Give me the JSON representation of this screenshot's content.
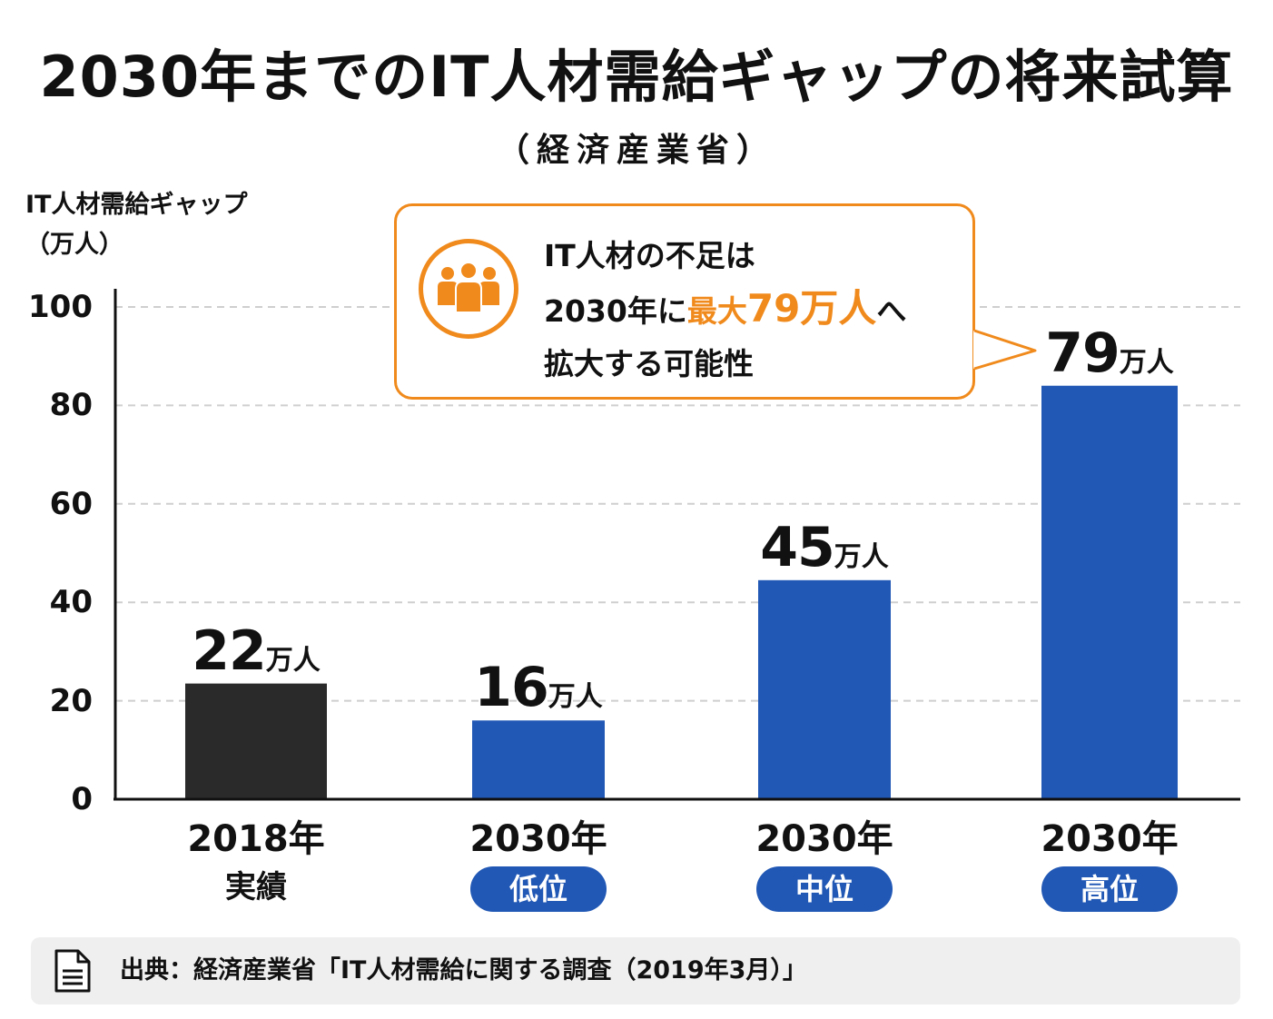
{
  "header": {
    "title": "2030年までのIT人材需給ギャップの将来試算",
    "subtitle": "（経済産業省）"
  },
  "chart_data": {
    "type": "bar",
    "title": "2030年までのIT人材需給ギャップの将来試算",
    "ylabel_line1": "IT人材需給ギャップ",
    "ylabel_line2": "（万人）",
    "ylim": [
      0,
      100
    ],
    "yticks": [
      0,
      20,
      40,
      60,
      80,
      100
    ],
    "grid": true,
    "unit": "万人",
    "categories": [
      {
        "year": "2018年",
        "sub": "実績",
        "pill": false
      },
      {
        "year": "2030年",
        "sub": "低位",
        "pill": true
      },
      {
        "year": "2030年",
        "sub": "中位",
        "pill": true
      },
      {
        "year": "2030年",
        "sub": "高位",
        "pill": true
      }
    ],
    "values": [
      22,
      16,
      45,
      79
    ],
    "value_labels": [
      "22",
      "16",
      "45",
      "79"
    ],
    "bar_heights": [
      23.5,
      16,
      44.5,
      84
    ],
    "colors": [
      "#2a2a2a",
      "#2158b5",
      "#2158b5",
      "#2158b5"
    ]
  },
  "callout": {
    "line1": "IT人材の不足は",
    "line2_pre": "2030年に",
    "line2_highlight_a": "最大",
    "line2_highlight_b": "79万人",
    "line2_post": "へ",
    "line3": "拡大する可能性",
    "icon": "people-group-icon",
    "accent": "#f08a1c"
  },
  "source": {
    "text": "出典：経済産業省「IT人材需給に関する調査（2019年3月）」",
    "icon": "document-icon"
  }
}
